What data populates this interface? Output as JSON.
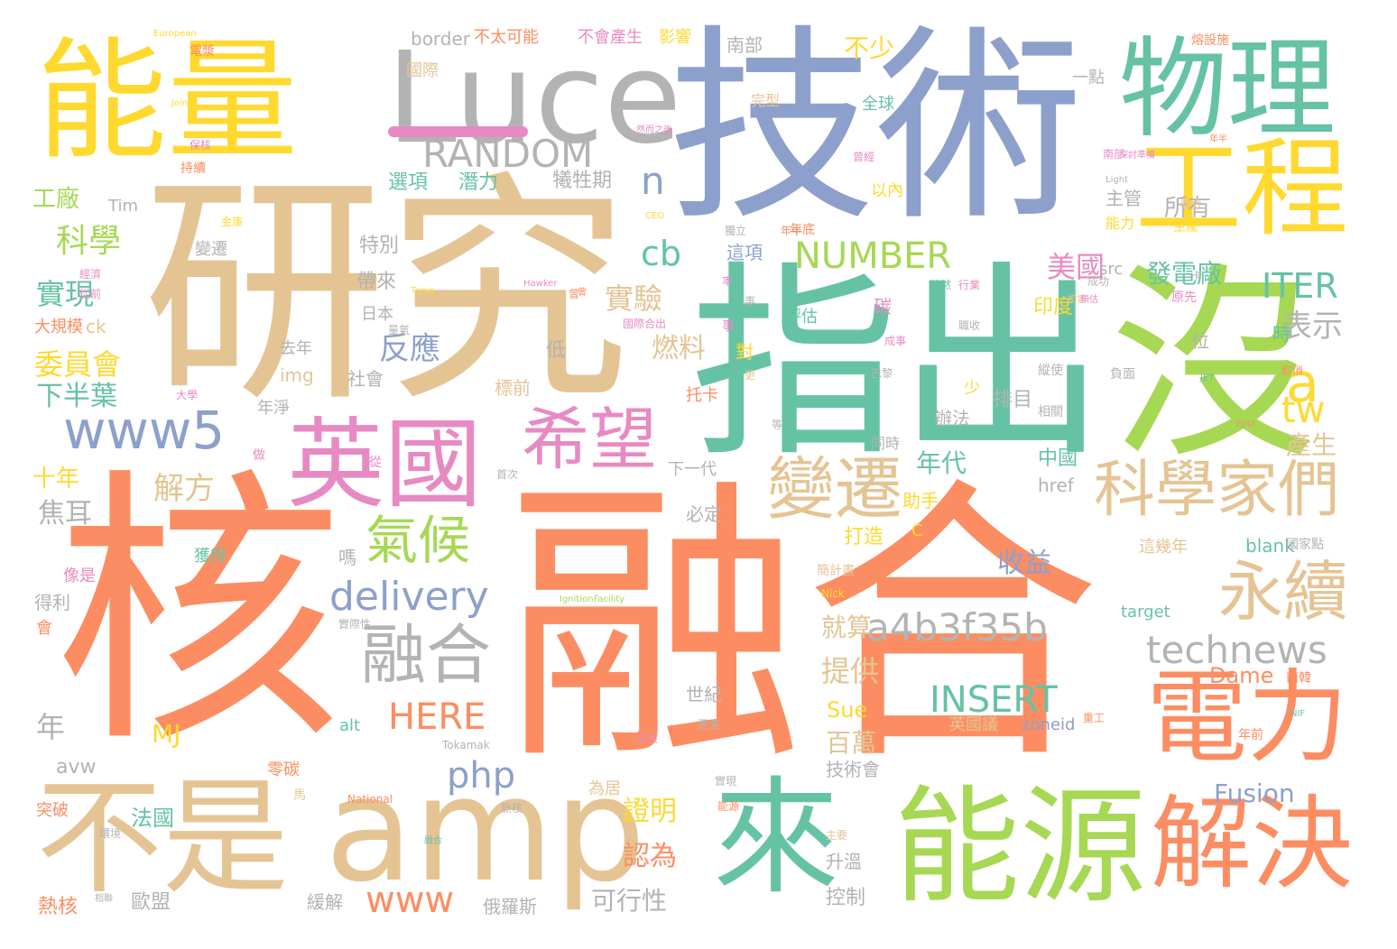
{
  "cloud": {
    "colors": {
      "orange": "#fc8d62",
      "tan": "#e5c494",
      "teal": "#66c2a5",
      "blue": "#8da0cb",
      "yellow": "#ffd92f",
      "green": "#a6d854",
      "pink": "#e78ac3",
      "gray": "#b3b3b3"
    },
    "big": {
      "he": "核",
      "ronghe": "融合",
      "yanjiu": "研究",
      "jishu": "技術",
      "zhichu": "指出",
      "mei": "沒",
      "nengliang": "能量",
      "luce": "Luce",
      "wuli": "物理",
      "gongcheng": "工程",
      "yingguo": "英國",
      "bushi": "不是",
      "amp": "amp",
      "lai": "來",
      "nengyuan": "能源",
      "jiejue": "解決",
      "dianli": "電力",
      "xiwang": "希望",
      "bianqian": "變遷",
      "kexuejiamen": "科學家們",
      "yongxu": "永續",
      "ronghe2": "融合",
      "qihou": "氣候",
      "www5": "www5",
      "random": "RANDOM",
      "number": "NUMBER",
      "delivery": "delivery",
      "a4b3f35b": "a4b3f35b",
      "technews": "technews",
      "insert": "INSERT",
      "php": "php",
      "here": "HERE",
      "www": "www",
      "a": "a",
      "tw": "tw",
      "iter": "ITER",
      "cb": "cb",
      "n": "n",
      "fusion": "Fusion"
    },
    "words": [
      [
        "科學",
        62,
        250,
        36,
        "gr",
        0
      ],
      [
        "實現",
        40,
        310,
        32,
        "tl",
        0
      ],
      [
        "委員會",
        38,
        388,
        32,
        "yl",
        0
      ],
      [
        "下半葉",
        40,
        425,
        30,
        "tl",
        0
      ],
      [
        "工廠",
        36,
        208,
        26,
        "gr",
        0
      ],
      [
        "十年",
        36,
        518,
        26,
        "yl",
        0
      ],
      [
        "焦耳",
        42,
        555,
        30,
        "gy",
        0
      ],
      [
        "解方",
        170,
        525,
        34,
        "tn",
        0
      ],
      [
        "年",
        40,
        790,
        32,
        "gy",
        0
      ],
      [
        "MJ",
        168,
        800,
        28,
        "yl",
        0
      ],
      [
        "avw",
        62,
        840,
        22,
        "gy",
        0
      ],
      [
        "突破",
        40,
        890,
        18,
        "or",
        0
      ],
      [
        "法國",
        145,
        895,
        24,
        "tl",
        0
      ],
      [
        "熱核",
        42,
        995,
        22,
        "or",
        0
      ],
      [
        "歐盟",
        145,
        990,
        22,
        "gy",
        0
      ],
      [
        "緩解",
        340,
        990,
        20,
        "gy",
        0
      ],
      [
        "俄羅斯",
        535,
        995,
        20,
        "gy",
        0
      ],
      [
        "可行性",
        655,
        985,
        28,
        "gy",
        0
      ],
      [
        "控制",
        915,
        985,
        22,
        "gy",
        0
      ],
      [
        "認為",
        690,
        935,
        30,
        "or",
        0
      ],
      [
        "證明",
        690,
        885,
        30,
        "yl",
        0
      ],
      [
        "技術會",
        915,
        843,
        20,
        "gy",
        0
      ],
      [
        "升溫",
        915,
        945,
        20,
        "gy",
        0
      ],
      [
        "百萬",
        915,
        810,
        28,
        "tn",
        0
      ],
      [
        "提供",
        910,
        728,
        32,
        "tn",
        0
      ],
      [
        "就算",
        910,
        682,
        28,
        "tn",
        0
      ],
      [
        "收益",
        1105,
        610,
        30,
        "bl",
        0
      ],
      [
        "世紀",
        760,
        760,
        20,
        "gy",
        0
      ],
      [
        "必定",
        760,
        560,
        20,
        "gy",
        0
      ],
      [
        "下一代",
        740,
        512,
        18,
        "gy",
        0
      ],
      [
        "打造",
        935,
        585,
        22,
        "yl",
        0
      ],
      [
        "助手",
        1000,
        545,
        20,
        "yl",
        0
      ],
      [
        "年代",
        1015,
        500,
        28,
        "tl",
        0
      ],
      [
        "辦法",
        1035,
        454,
        20,
        "gy",
        0
      ],
      [
        "同時",
        965,
        484,
        16,
        "gy",
        0
      ],
      [
        "中國",
        1150,
        498,
        22,
        "tl",
        0
      ],
      [
        "排目",
        1100,
        433,
        22,
        "gy",
        0
      ],
      [
        "印度",
        1145,
        330,
        22,
        "yl",
        0
      ],
      [
        "發電廠",
        1270,
        290,
        28,
        "tl",
        0
      ],
      [
        "所有",
        1290,
        218,
        26,
        "gy",
        0
      ],
      [
        "主管",
        1225,
        210,
        20,
        "gy",
        0
      ],
      [
        "美國",
        1160,
        280,
        32,
        "pk",
        0
      ],
      [
        "表示",
        1420,
        345,
        34,
        "gy",
        0
      ],
      [
        "實驗",
        670,
        315,
        32,
        "tn",
        0
      ],
      [
        "反應",
        420,
        370,
        34,
        "bl",
        0
      ],
      [
        "燃料",
        722,
        372,
        30,
        "tn",
        0
      ],
      [
        "特別",
        398,
        262,
        22,
        "gy",
        0
      ],
      [
        "帶來",
        395,
        302,
        22,
        "gy",
        0
      ],
      [
        "選項",
        430,
        192,
        22,
        "tl",
        0
      ],
      [
        "潛力",
        508,
        192,
        22,
        "tl",
        0
      ],
      [
        "犧牲期",
        612,
        190,
        22,
        "gy",
        0
      ],
      [
        "不少",
        935,
        40,
        28,
        "yl",
        0
      ],
      [
        "全球",
        955,
        107,
        18,
        "tl",
        0
      ],
      [
        "以內",
        965,
        203,
        18,
        "yl",
        0
      ],
      [
        "這項",
        805,
        270,
        20,
        "bl",
        0
      ],
      [
        "產生",
        1425,
        480,
        28,
        "tn",
        0
      ],
      [
        "時",
        1410,
        360,
        20,
        "tl",
        0
      ],
      [
        "位",
        1320,
        368,
        20,
        "gy",
        0
      ],
      [
        "對",
        815,
        380,
        20,
        "yl",
        0
      ],
      [
        "評估",
        870,
        343,
        18,
        "tl",
        0
      ],
      [
        "低",
        605,
        378,
        22,
        "gy",
        0
      ],
      [
        "社會",
        385,
        410,
        20,
        "gy",
        0
      ],
      [
        "標前",
        548,
        420,
        20,
        "tn",
        0
      ],
      [
        "日本",
        400,
        340,
        18,
        "gy",
        0
      ],
      [
        "img",
        310,
        406,
        20,
        "tn",
        0
      ],
      [
        "去年",
        310,
        378,
        18,
        "gy",
        0
      ],
      [
        "年淨",
        285,
        444,
        18,
        "gy",
        0
      ],
      [
        "ck",
        95,
        352,
        20,
        "tn",
        0
      ],
      [
        "大規模",
        38,
        354,
        18,
        "or",
        0
      ],
      [
        "國際",
        450,
        70,
        18,
        "tn",
        0
      ],
      [
        "南部",
        805,
        40,
        20,
        "gy",
        0
      ],
      [
        "border",
        455,
        33,
        20,
        "gy",
        0
      ],
      [
        "不太可能",
        525,
        33,
        18,
        "or",
        0
      ],
      [
        "不會產生",
        640,
        33,
        18,
        "pk",
        0
      ],
      [
        "影響",
        730,
        33,
        18,
        "yl",
        0
      ],
      [
        "電漿",
        210,
        50,
        14,
        "or",
        0
      ],
      [
        "一點",
        1188,
        78,
        18,
        "gy",
        0
      ],
      [
        "熔設施",
        1320,
        38,
        14,
        "or",
        0
      ],
      [
        "Tim",
        120,
        220,
        18,
        "gy",
        0
      ],
      [
        "嗎",
        375,
        608,
        20,
        "gy",
        0
      ],
      [
        "得利",
        38,
        658,
        20,
        "gy",
        0
      ],
      [
        "獲得",
        215,
        608,
        18,
        "tl",
        0
      ],
      [
        "像是",
        70,
        630,
        18,
        "pk",
        0
      ],
      [
        "會",
        40,
        688,
        18,
        "or",
        0
      ],
      [
        "零碳",
        296,
        845,
        18,
        "or",
        0
      ],
      [
        "為居",
        652,
        866,
        18,
        "tn",
        0
      ],
      [
        "英國議",
        1052,
        795,
        18,
        "tn",
        0
      ],
      [
        "zoneid",
        1132,
        795,
        18,
        "bl",
        0
      ],
      [
        "Dame",
        1340,
        737,
        24,
        "or",
        0
      ],
      [
        "Sue",
        916,
        775,
        24,
        "yl",
        0
      ],
      [
        "alt",
        376,
        796,
        18,
        "tl",
        0
      ],
      [
        "blank",
        1380,
        595,
        20,
        "tl",
        0
      ],
      [
        "target",
        1242,
        670,
        18,
        "tl",
        0
      ],
      [
        "這幾年",
        1262,
        598,
        18,
        "tn",
        0
      ],
      [
        "href",
        1150,
        528,
        20,
        "gy",
        0
      ],
      [
        "src",
        1218,
        290,
        18,
        "gy",
        0
      ],
      [
        "南韓",
        1425,
        745,
        14,
        "or",
        0
      ],
      [
        "年前",
        1372,
        808,
        14,
        "or",
        0
      ],
      [
        "C",
        1010,
        580,
        18,
        "yl",
        0
      ],
      [
        "European",
        170,
        33,
        10,
        "yl",
        0
      ],
      [
        "Joint",
        190,
        110,
        10,
        "yl",
        0
      ],
      [
        "Torus",
        455,
        318,
        10,
        "yl",
        0
      ],
      [
        "Hawker",
        580,
        310,
        10,
        "pk",
        0
      ],
      [
        "IgnitionFacility",
        620,
        660,
        10,
        "gr",
        0
      ],
      [
        "National",
        385,
        880,
        12,
        "or",
        0
      ],
      [
        "Tokamak",
        490,
        820,
        12,
        "gy",
        0
      ],
      [
        "Nick",
        910,
        652,
        12,
        "yl",
        0
      ],
      [
        "Light",
        1225,
        195,
        10,
        "gy",
        0
      ],
      [
        "CEO",
        715,
        235,
        10,
        "yl",
        0
      ],
      [
        "JET",
        1330,
        415,
        10,
        "tl",
        0
      ],
      [
        "First",
        1370,
        466,
        10,
        "or",
        0
      ],
      [
        "NIF",
        1430,
        787,
        10,
        "tl",
        0
      ],
      [
        "國家點",
        1425,
        597,
        14,
        "gy",
        0
      ],
      [
        "生產",
        1300,
        245,
        14,
        "yl",
        0
      ],
      [
        "能力",
        1225,
        240,
        16,
        "yl",
        0
      ],
      [
        "年底",
        875,
        248,
        14,
        "or",
        0
      ],
      [
        "聯合",
        1308,
        220,
        12,
        "tn",
        0
      ],
      [
        "卡",
        1320,
        300,
        12,
        "gy",
        0
      ],
      [
        "托卡",
        760,
        430,
        18,
        "or",
        0
      ],
      [
        "少",
        1068,
        422,
        18,
        "yl",
        0
      ],
      [
        "相關",
        1150,
        450,
        14,
        "gy",
        0
      ],
      [
        "縱使",
        1150,
        404,
        14,
        "gy",
        0
      ],
      [
        "負面",
        1230,
        408,
        14,
        "gy",
        0
      ],
      [
        "取消",
        1420,
        405,
        12,
        "or",
        0
      ],
      [
        "巴黎",
        965,
        408,
        12,
        "gy",
        0
      ],
      [
        "成事",
        980,
        372,
        12,
        "pk",
        0
      ],
      [
        "職收",
        1062,
        355,
        12,
        "gy",
        0
      ],
      [
        "碳",
        968,
        330,
        20,
        "pk",
        0
      ],
      [
        "簡計畫",
        905,
        626,
        14,
        "tn",
        0
      ],
      [
        "主要",
        915,
        920,
        12,
        "tn",
        0
      ],
      [
        "實際性",
        375,
        686,
        12,
        "gy",
        0
      ],
      [
        "原先",
        1298,
        323,
        14,
        "pk",
        0
      ],
      [
        "首次",
        550,
        520,
        12,
        "gy",
        0
      ],
      [
        "更",
        825,
        410,
        12,
        "tn",
        0
      ],
      [
        "曾",
        630,
        320,
        12,
        "or",
        0
      ],
      [
        "等",
        855,
        465,
        12,
        "gy",
        0
      ],
      [
        "融合",
        470,
        928,
        10,
        "tl",
        0
      ],
      [
        "未來",
        705,
        813,
        12,
        "pk",
        0
      ],
      [
        "更遠",
        773,
        797,
        12,
        "gy",
        0
      ],
      [
        "馬",
        325,
        875,
        14,
        "tn",
        0
      ],
      [
        "國際合出",
        690,
        353,
        12,
        "pk",
        0
      ],
      [
        "實現",
        792,
        860,
        12,
        "gy",
        0
      ],
      [
        "能源",
        795,
        888,
        12,
        "or",
        0
      ],
      [
        "獨立",
        803,
        250,
        12,
        "gy",
        0
      ],
      [
        "環境",
        110,
        918,
        12,
        "gy",
        0
      ],
      [
        "相聯",
        105,
        992,
        10,
        "gy",
        0
      ],
      [
        "從",
        409,
        506,
        14,
        "pk",
        0
      ],
      [
        "做",
        280,
        498,
        14,
        "pk",
        0
      ],
      [
        "經濟",
        88,
        298,
        12,
        "pk",
        0
      ],
      [
        "從前",
        88,
        320,
        12,
        "pk",
        0
      ],
      [
        "大學",
        195,
        432,
        12,
        "pk",
        0
      ],
      [
        "變遷",
        216,
        268,
        18,
        "gy",
        0
      ],
      [
        "量氣",
        430,
        360,
        12,
        "gy",
        0
      ],
      [
        "曾",
        640,
        320,
        10,
        "or",
        0
      ],
      [
        "持續",
        200,
        180,
        14,
        "or",
        0
      ],
      [
        "金庫",
        245,
        240,
        12,
        "yl",
        0
      ],
      [
        "保核",
        210,
        155,
        12,
        "pk",
        0
      ],
      [
        "熱核",
        555,
        890,
        12,
        "gy",
        0
      ],
      [
        "年半",
        865,
        250,
        12,
        "or",
        0
      ],
      [
        "其然",
        1030,
        310,
        12,
        "tl",
        0
      ],
      [
        "南部",
        1222,
        165,
        12,
        "pk",
        0
      ],
      [
        "探討準備",
        1240,
        168,
        10,
        "pk",
        0
      ],
      [
        "然而之後",
        705,
        140,
        10,
        "pk",
        0
      ],
      [
        "完型",
        832,
        104,
        16,
        "tn",
        0
      ],
      [
        "事",
        800,
        355,
        14,
        "pk",
        0
      ],
      [
        "事",
        825,
        328,
        12,
        "gy",
        0
      ],
      [
        "率",
        800,
        306,
        12,
        "pk",
        0
      ],
      [
        "成功",
        1205,
        306,
        12,
        "gy",
        0
      ],
      [
        "行業",
        1062,
        310,
        12,
        "pk",
        0
      ],
      [
        "相當",
        1183,
        328,
        10,
        "tn",
        0
      ],
      [
        "年半",
        1340,
        150,
        10,
        "or",
        0
      ],
      [
        "曾經",
        945,
        168,
        12,
        "pk",
        0
      ],
      [
        "預估",
        1197,
        328,
        10,
        "pk",
        0
      ],
      [
        "重工",
        1200,
        790,
        12,
        "or",
        0
      ]
    ]
  }
}
